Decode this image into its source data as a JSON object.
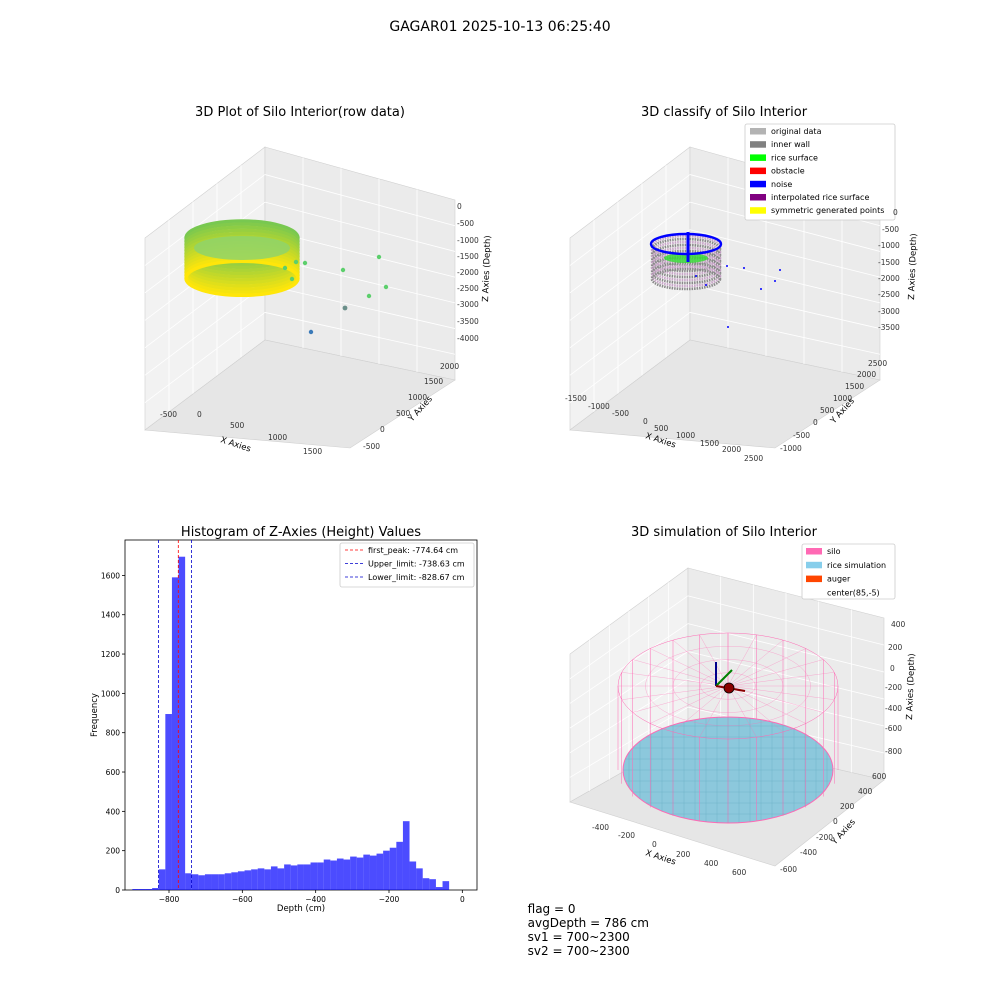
{
  "suptitle": "GAGAR01 2025-10-13 06:25:40",
  "panels": {
    "raw": {
      "title": "3D Plot of Silo Interior(row data)",
      "xlabel": "X Axies",
      "ylabel": "Y Axies",
      "zlabel": "Z Axies (Depth)",
      "xticks": [
        "-500",
        "0",
        "500",
        "1000",
        "1500"
      ],
      "yticks": [
        "-500",
        "0",
        "500",
        "1000",
        "1500",
        "2000"
      ],
      "zticks": [
        "0",
        "-500",
        "-1000",
        "-1500",
        "-2000",
        "-2500",
        "-3000",
        "-3500",
        "-4000"
      ]
    },
    "classify": {
      "title": "3D classify of Silo Interior",
      "xlabel": "X Axies",
      "ylabel": "Y Axies",
      "zlabel": "Z Axies (Depth)",
      "xticks": [
        "-1500",
        "-1000",
        "-500",
        "0",
        "500",
        "1000",
        "1500",
        "2000",
        "2500"
      ],
      "yticks": [
        "-1000",
        "-500",
        "0",
        "500",
        "1000",
        "1500",
        "2000",
        "2500"
      ],
      "zticks": [
        "0",
        "-500",
        "-1000",
        "-1500",
        "-2000",
        "-2500",
        "-3000",
        "-3500"
      ],
      "legend": [
        {
          "label": "original data",
          "color": "#b3b3b3"
        },
        {
          "label": "inner wall",
          "color": "#808080"
        },
        {
          "label": "rice surface",
          "color": "#00ff00"
        },
        {
          "label": "obstacle",
          "color": "#ff0000"
        },
        {
          "label": "noise",
          "color": "#0000ff"
        },
        {
          "label": "interpolated rice surface",
          "color": "#800080"
        },
        {
          "label": "symmetric generated points",
          "color": "#ffff00"
        }
      ]
    },
    "simulation": {
      "title": "3D simulation of Silo Interior",
      "xlabel": "X Axies",
      "ylabel": "Y Axies",
      "zlabel": "Z Axies (Depth)",
      "xticks": [
        "-400",
        "-200",
        "0",
        "200",
        "400",
        "600"
      ],
      "yticks": [
        "-600",
        "-400",
        "-200",
        "0",
        "200",
        "400",
        "600"
      ],
      "zticks": [
        "400",
        "200",
        "0",
        "-200",
        "-400",
        "-600",
        "-800"
      ],
      "legend": [
        {
          "label": "silo",
          "color": "#ff69b4"
        },
        {
          "label": "rice simulation",
          "color": "#87ceeb"
        },
        {
          "label": "auger",
          "color": "#ff4500"
        },
        {
          "label": "center(85,-5)",
          "color": "#ffffff"
        }
      ]
    }
  },
  "status": {
    "flag": "flag = 0",
    "avg_depth": "avgDepth = 786 cm",
    "sv1": "sv1 = 700~2300",
    "sv2": "sv2 = 700~2300"
  },
  "chart_data": [
    {
      "type": "histogram",
      "title": "Histogram of Z-Axies (Height) Values",
      "xlabel": "Depth (cm)",
      "ylabel": "Frequency",
      "xlim": [
        -920,
        40
      ],
      "ylim": [
        0,
        1780
      ],
      "xticks": [
        -800,
        -600,
        -400,
        -200,
        0
      ],
      "yticks": [
        0,
        200,
        400,
        600,
        800,
        1000,
        1200,
        1400,
        1600
      ],
      "bar_color": "#0000ff",
      "bin_edges": [
        -900,
        -882,
        -864,
        -846,
        -828,
        -810,
        -792,
        -774,
        -756,
        -738,
        -720,
        -702,
        -684,
        -666,
        -648,
        -630,
        -612,
        -594,
        -576,
        -558,
        -540,
        -522,
        -504,
        -486,
        -468,
        -450,
        -432,
        -414,
        -396,
        -378,
        -360,
        -342,
        -324,
        -306,
        -288,
        -270,
        -252,
        -234,
        -216,
        -198,
        -180,
        -162,
        -144,
        -126,
        -108,
        -90,
        -72,
        -54,
        -36,
        -18,
        0
      ],
      "values": [
        5,
        5,
        5,
        10,
        105,
        895,
        1590,
        1695,
        85,
        80,
        75,
        80,
        80,
        80,
        85,
        90,
        95,
        100,
        105,
        110,
        105,
        120,
        110,
        130,
        125,
        130,
        130,
        140,
        140,
        155,
        150,
        160,
        155,
        170,
        165,
        180,
        175,
        185,
        200,
        215,
        245,
        350,
        145,
        110,
        60,
        55,
        15,
        45,
        0,
        0
      ],
      "vlines": [
        {
          "label": "first_peak: -774.64 cm",
          "x": -774.64,
          "color": "#ff0000"
        },
        {
          "label": "Upper_limit: -738.63 cm",
          "x": -738.63,
          "color": "#0000cc"
        },
        {
          "label": "Lower_limit: -828.67 cm",
          "x": -828.67,
          "color": "#0000cc"
        }
      ],
      "legend_position": "top-right"
    }
  ]
}
